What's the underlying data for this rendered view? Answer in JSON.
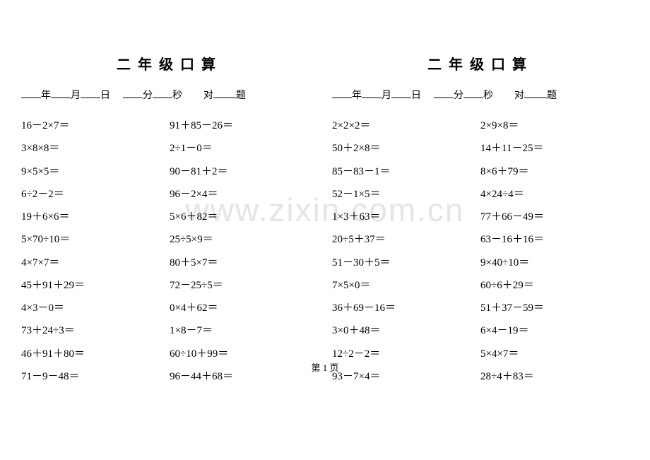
{
  "title": "二年级口算",
  "info": {
    "year": "年",
    "month": "月",
    "day": "日",
    "min": "分",
    "sec": "秒",
    "correct": "对",
    "questions": "题"
  },
  "left": {
    "col1": [
      "16－2×7＝",
      "3×8×8＝",
      "9×5×5＝",
      "6÷2－2＝",
      "19＋6×6＝",
      "5×70÷10＝",
      "4×7×7＝",
      "45＋91＋29＝",
      "4×3－0＝",
      "73＋24÷3＝",
      "46＋91＋80＝",
      "71－9－48＝"
    ],
    "col2": [
      "91＋85－26＝",
      "2÷1－0＝",
      "90－81＋2＝",
      "96－2×4＝",
      "5×6＋82＝",
      "25÷5×9＝",
      "80＋5×7＝",
      "72－25÷5＝",
      "0×4＋62＝",
      "1×8－7＝",
      "60÷10＋99＝",
      "96－44＋68＝"
    ]
  },
  "right": {
    "col1": [
      "2×2×2＝",
      "50＋2×8＝",
      "85－83－1＝",
      "52－1×5＝",
      "1×3＋63＝",
      "20÷5＋37＝",
      "51－30＋5＝",
      "7×5×0＝",
      "36＋69－16＝",
      "3×0＋48＝",
      "12÷2－2＝",
      "93－7×4＝"
    ],
    "col2": [
      "2×9×8＝",
      "14＋11－25＝",
      "8×6＋79＝",
      "4×24÷4＝",
      "77＋66－49＝",
      "63－16＋16＝",
      "9×40÷10＝",
      "60÷6＋29＝",
      "51＋37－59＝",
      "6×4－19＝",
      "5×4×7＝",
      "28÷4＋83＝"
    ]
  },
  "footer": "第 1 页",
  "watermark": "www.zixin.com.cn"
}
